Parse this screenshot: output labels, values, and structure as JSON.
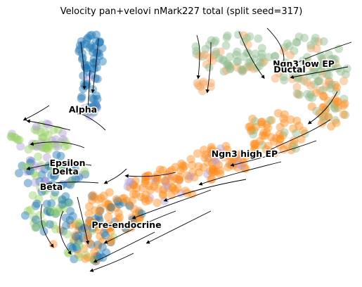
{
  "chart_data": {
    "type": "scatter",
    "title": "Velocity pan+velovi nMark227 total (split seed=317)",
    "embedding": "umap",
    "axes_visible": false,
    "grid": false,
    "legend": "on data",
    "overlay": "velocity streamlines with arrowheads",
    "cluster_labels": [
      "Ngn3 low EP",
      "Ductal",
      "Alpha",
      "Ngn3 high EP",
      "Epsilon",
      "Delta",
      "Beta",
      "Pre-endocrine"
    ],
    "cluster_colors": {
      "Ductal": "#8fbc8f",
      "Ngn3 low EP": "#f4a460",
      "Ngn3 high EP": "#ff8c1a",
      "Pre-endocrine": "#ff8c1a",
      "Alpha": "#1f77b4",
      "Beta": "#1f77b4",
      "Delta": "#9ad066",
      "Epsilon": "#b39ddb"
    }
  }
}
